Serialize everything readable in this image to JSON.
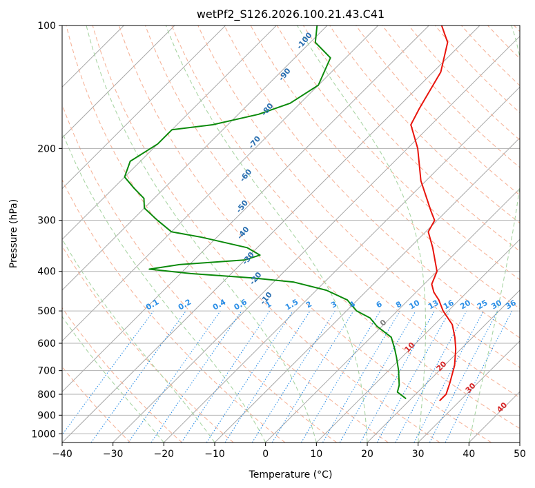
{
  "chart_data": {
    "type": "line",
    "subtype": "skew-t log-p diagram",
    "title": "wetPf2_S126.2026.100.21.43.C41",
    "xlabel": "Temperature (°C)",
    "ylabel": "Pressure (hPa)",
    "xlim": [
      -40,
      50
    ],
    "ylim": [
      1050,
      100
    ],
    "yscale": "log",
    "x_ticks": [
      -40,
      -30,
      -20,
      -10,
      0,
      10,
      20,
      30,
      40,
      50
    ],
    "x_tick_labels": [
      "−40",
      "−30",
      "−20",
      "−10",
      "0",
      "10",
      "20",
      "30",
      "40",
      "50"
    ],
    "y_ticks": [
      100,
      200,
      300,
      400,
      500,
      600,
      700,
      800,
      900,
      1000
    ],
    "y_tick_labels": [
      "100",
      "200",
      "300",
      "400",
      "500",
      "600",
      "700",
      "800",
      "900",
      "1000"
    ],
    "grid": true,
    "series": [
      {
        "color": "#e8140c",
        "role": "temperature",
        "points": [
          [
            100,
            -47.5
          ],
          [
            110,
            -43
          ],
          [
            130,
            -38.5
          ],
          [
            160,
            -35.5
          ],
          [
            175,
            -34
          ],
          [
            200,
            -28
          ],
          [
            240,
            -21
          ],
          [
            285,
            -13
          ],
          [
            300,
            -10.5
          ],
          [
            320,
            -9.5
          ],
          [
            350,
            -5.5
          ],
          [
            400,
            0
          ],
          [
            430,
            1.5
          ],
          [
            450,
            3.5
          ],
          [
            470,
            6
          ],
          [
            500,
            9
          ],
          [
            540,
            13.5
          ],
          [
            580,
            16.5
          ],
          [
            620,
            19
          ],
          [
            680,
            22
          ],
          [
            750,
            24.5
          ],
          [
            800,
            26
          ],
          [
            830,
            26
          ]
        ]
      },
      {
        "color": "#0b8a0b",
        "role": "dewpoint",
        "points": [
          [
            100,
            -72
          ],
          [
            110,
            -69
          ],
          [
            120,
            -63
          ],
          [
            140,
            -60
          ],
          [
            155,
            -62
          ],
          [
            165,
            -66
          ],
          [
            175,
            -73
          ],
          [
            180,
            -80
          ],
          [
            195,
            -80
          ],
          [
            215,
            -82
          ],
          [
            235,
            -80
          ],
          [
            250,
            -76
          ],
          [
            265,
            -72
          ],
          [
            280,
            -70
          ],
          [
            300,
            -65
          ],
          [
            320,
            -60
          ],
          [
            330,
            -53
          ],
          [
            350,
            -42
          ],
          [
            365,
            -38
          ],
          [
            375,
            -40
          ],
          [
            385,
            -52
          ],
          [
            395,
            -57
          ],
          [
            405,
            -48
          ],
          [
            415,
            -35
          ],
          [
            425,
            -26
          ],
          [
            445,
            -18
          ],
          [
            470,
            -12
          ],
          [
            500,
            -8
          ],
          [
            520,
            -4
          ],
          [
            545,
            -1
          ],
          [
            580,
            4
          ],
          [
            620,
            7
          ],
          [
            650,
            9
          ],
          [
            700,
            12
          ],
          [
            760,
            15
          ],
          [
            790,
            16
          ],
          [
            820,
            19
          ]
        ]
      }
    ],
    "reference_lines": {
      "isotherms_degC": [
        -110,
        -100,
        -90,
        -80,
        -70,
        -60,
        -50,
        -40,
        -30,
        -20,
        -10,
        0,
        10,
        20,
        30,
        40,
        50
      ],
      "dry_adiabats_degC": [
        -30,
        -20,
        -10,
        0,
        10,
        20,
        30,
        40,
        50,
        60,
        70,
        80,
        90,
        100,
        110,
        120,
        130,
        140,
        150,
        160,
        170,
        180,
        190,
        200,
        210
      ],
      "moist_adiabats_degC": [
        -20,
        -10,
        0,
        10,
        20,
        30,
        40
      ],
      "mixing_ratio_gkg": [
        0.1,
        0.2,
        0.4,
        0.6,
        1,
        1.5,
        2,
        3,
        4,
        6,
        8,
        10,
        13,
        16,
        20,
        25,
        30,
        36
      ]
    },
    "annotations": {
      "dry_adiabat_labels": [
        {
          "text": "-100",
          "p": 110
        },
        {
          "text": "-90",
          "p": 133
        },
        {
          "text": "-80",
          "p": 162
        },
        {
          "text": "-70",
          "p": 195
        },
        {
          "text": "-60",
          "p": 235
        },
        {
          "text": "-50",
          "p": 280
        },
        {
          "text": "-40",
          "p": 325
        },
        {
          "text": "-30",
          "p": 375
        },
        {
          "text": "-20",
          "p": 420
        },
        {
          "text": "-10",
          "p": 470
        }
      ],
      "isotherm_labels": [
        {
          "text": "0",
          "p": 540,
          "color": "#7f7f7f"
        },
        {
          "text": "10",
          "p": 620,
          "color": "#d62728"
        },
        {
          "text": "20",
          "p": 690,
          "color": "#d62728"
        },
        {
          "text": "30",
          "p": 780,
          "color": "#d62728"
        },
        {
          "text": "40",
          "p": 870,
          "color": "#d62728"
        }
      ],
      "mixing_ratio_labels": [
        "0.1",
        "0.2",
        "0.4",
        "0.6",
        "1",
        "1.5",
        "2",
        "3",
        "4",
        "6",
        "8",
        "10",
        "13",
        "16",
        "20",
        "25",
        "30",
        "36"
      ],
      "mixing_ratio_label_pressure": 500
    },
    "colors": {
      "temperature": "#e8140c",
      "dewpoint": "#0b8a0b",
      "isotherm": "#a8a8a8",
      "dry_adiabat": "#f6b49a",
      "moist_adiabat": "#a9d5a4",
      "mixing_ratio": "#2d8fe6",
      "gridline": "#b0b0b0"
    }
  }
}
